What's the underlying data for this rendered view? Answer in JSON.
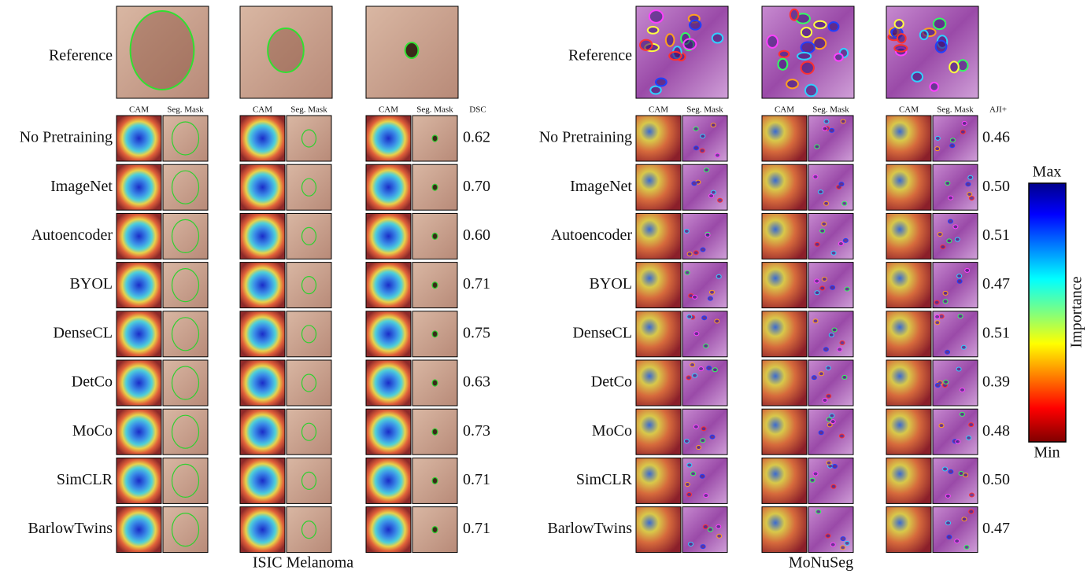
{
  "panels": [
    {
      "title": "ISIC Melanoma",
      "reference_label": "Reference",
      "column_headers": [
        "CAM",
        "Seg. Mask"
      ],
      "metric": "DSC",
      "rows": [
        {
          "method": "No Pretraining",
          "score": "0.62"
        },
        {
          "method": "ImageNet",
          "score": "0.70"
        },
        {
          "method": "Autoencoder",
          "score": "0.60"
        },
        {
          "method": "BYOL",
          "score": "0.71"
        },
        {
          "method": "DenseCL",
          "score": "0.75"
        },
        {
          "method": "DetCo",
          "score": "0.63"
        },
        {
          "method": "MoCo",
          "score": "0.73"
        },
        {
          "method": "SimCLR",
          "score": "0.71"
        },
        {
          "method": "BarlowTwins",
          "score": "0.71"
        }
      ]
    },
    {
      "title": "MoNuSeg",
      "reference_label": "Reference",
      "column_headers": [
        "CAM",
        "Seg. Mask"
      ],
      "metric": "AJI+",
      "rows": [
        {
          "method": "No Pretraining",
          "score": "0.46"
        },
        {
          "method": "ImageNet",
          "score": "0.50"
        },
        {
          "method": "Autoencoder",
          "score": "0.51"
        },
        {
          "method": "BYOL",
          "score": "0.47"
        },
        {
          "method": "DenseCL",
          "score": "0.51"
        },
        {
          "method": "DetCo",
          "score": "0.39"
        },
        {
          "method": "MoCo",
          "score": "0.48"
        },
        {
          "method": "SimCLR",
          "score": "0.50"
        },
        {
          "method": "BarlowTwins",
          "score": "0.47"
        }
      ]
    }
  ],
  "colorbar": {
    "max": "Max",
    "min": "Min",
    "label": "Importance"
  }
}
